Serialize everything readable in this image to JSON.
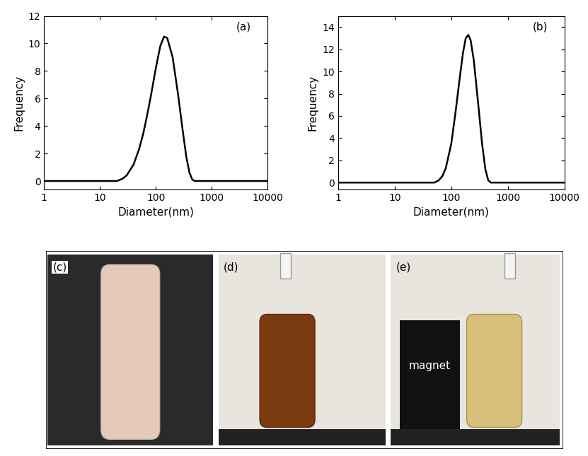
{
  "chart_data": [
    {
      "type": "line",
      "annotation": "(a)",
      "x_label": "Diameter(nm)",
      "y_label": "Frequency",
      "log": "x",
      "color": "#000000",
      "line_style": "solid",
      "x": [
        1,
        10,
        20,
        25,
        30,
        40,
        50,
        60,
        70,
        80,
        100,
        120,
        140,
        160,
        200,
        250,
        300,
        350,
        400,
        450,
        500,
        1000,
        10000
      ],
      "values": [
        0,
        0,
        0,
        0.15,
        0.4,
        1.2,
        2.3,
        3.5,
        4.8,
        6.0,
        8.2,
        9.8,
        10.5,
        10.4,
        9.0,
        6.3,
        3.8,
        1.8,
        0.6,
        0.1,
        0,
        0,
        0
      ],
      "xlim": [
        1,
        10000
      ],
      "xticks": [
        1,
        10,
        100,
        1000,
        10000
      ],
      "ylim": [
        -0.6,
        12
      ],
      "yticks": [
        0,
        2,
        4,
        6,
        8,
        10,
        12
      ]
    },
    {
      "type": "line",
      "annotation": "(b)",
      "x_label": "Diameter(nm)",
      "y_label": "Frequency",
      "log": "x",
      "color": "#000000",
      "line_style": "solid",
      "x": [
        1,
        10,
        50,
        60,
        70,
        80,
        100,
        120,
        140,
        160,
        180,
        200,
        220,
        250,
        300,
        350,
        400,
        450,
        500,
        1000,
        10000
      ],
      "values": [
        0,
        0,
        0,
        0.2,
        0.6,
        1.3,
        3.5,
        6.5,
        9.3,
        11.6,
        13.0,
        13.3,
        12.8,
        11.0,
        7.0,
        3.5,
        1.2,
        0.2,
        0,
        0,
        0
      ],
      "xlim": [
        1,
        10000
      ],
      "xticks": [
        1,
        10,
        100,
        1000,
        10000
      ],
      "ylim": [
        -0.6,
        15
      ],
      "yticks": [
        0,
        2,
        4,
        6,
        8,
        10,
        12,
        14
      ]
    }
  ],
  "photos": [
    {
      "label": "(c)"
    },
    {
      "label": "(d)"
    },
    {
      "label": "(e)",
      "text": "magnet"
    }
  ]
}
